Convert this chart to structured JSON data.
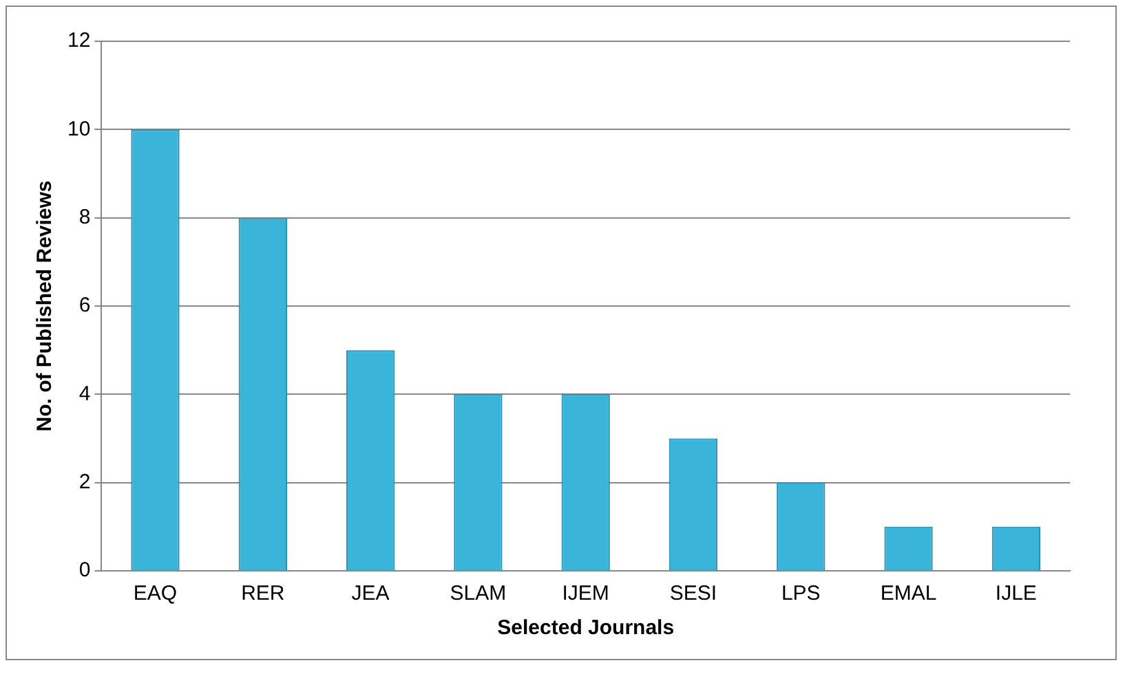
{
  "chart_data": {
    "type": "bar",
    "xlabel": "Selected Journals",
    "ylabel": "No. of Published Reviews",
    "categories": [
      "EAQ",
      "RER",
      "JEA",
      "SLAM",
      "IJEM",
      "SESI",
      "LPS",
      "EMAL",
      "IJLE"
    ],
    "values": [
      10,
      8,
      5,
      4,
      4,
      3,
      2,
      1,
      1
    ],
    "color": "#3ab4d8",
    "ylim": [
      0,
      12
    ],
    "yticks": [
      0,
      2,
      4,
      6,
      8,
      10,
      12
    ],
    "grid": "y",
    "legend": false
  }
}
